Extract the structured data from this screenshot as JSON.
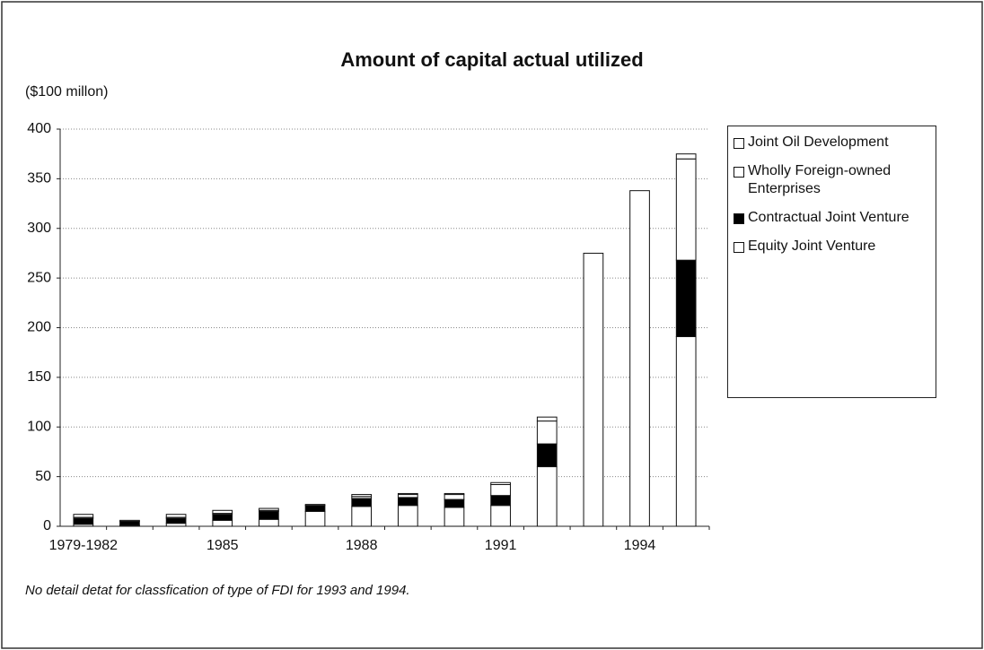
{
  "chart_data": {
    "type": "bar",
    "stacked": true,
    "title": "Amount of capital actual utilized",
    "y_label": "($100 millon)",
    "annotation": "No detail detat for classfication of type of FDI for 1993 and 1994.",
    "categories": [
      "1979-1982",
      null,
      null,
      "1985",
      null,
      null,
      "1988",
      null,
      null,
      "1991",
      null,
      null,
      "1994",
      null
    ],
    "series": [
      {
        "name": "Equity Joint Venture",
        "color": "#ffffff",
        "values": [
          2,
          1,
          3,
          6,
          7,
          15,
          20,
          21,
          19,
          21,
          60,
          275,
          338,
          191
        ]
      },
      {
        "name": "Contractual Joint Venture",
        "color": "#000000",
        "values": [
          6,
          4,
          5,
          6,
          8,
          6,
          8,
          8,
          8,
          10,
          23,
          null,
          null,
          77
        ]
      },
      {
        "name": "Wholly Foreign-owned Enterprises",
        "color": "#ffffff",
        "values": [
          1,
          0,
          1,
          1,
          1,
          1,
          2,
          3,
          5,
          11,
          23,
          null,
          null,
          102
        ]
      },
      {
        "name": "Joint Oil Development",
        "color": "#ffffff",
        "values": [
          3,
          1,
          3,
          3,
          2,
          0,
          2,
          1,
          1,
          2,
          4,
          null,
          null,
          5
        ]
      }
    ],
    "ylim": [
      0,
      400
    ],
    "yticks": [
      0,
      50,
      100,
      150,
      200,
      250,
      300,
      350,
      400
    ],
    "grid": true
  }
}
